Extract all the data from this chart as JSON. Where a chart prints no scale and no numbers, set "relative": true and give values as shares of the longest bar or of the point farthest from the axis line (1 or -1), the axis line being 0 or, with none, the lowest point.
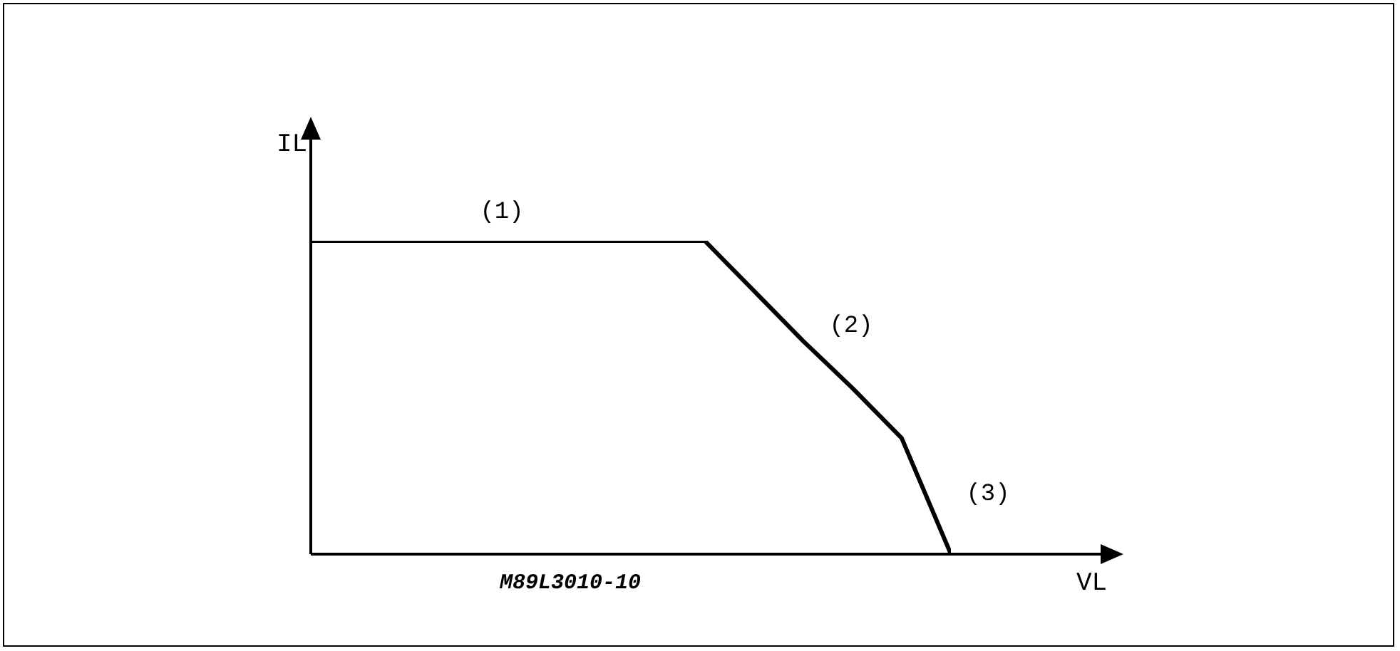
{
  "chart_data": {
    "type": "line",
    "relative": true,
    "xlabel": "VL",
    "ylabel": "IL",
    "categories": [
      null,
      null,
      null,
      null,
      null,
      null,
      null,
      null,
      null,
      null,
      null,
      null,
      null,
      null
    ],
    "series": [
      {
        "color": "#000000",
        "values": [
          1,
          1,
          1,
          1,
          1,
          1,
          1,
          1,
          1,
          0.84,
          0.68,
          0.53,
          0.37,
          0
        ]
      }
    ],
    "marker": "none",
    "line_style": "solid",
    "grid": false,
    "legend": false,
    "annotations": [
      "(1)",
      "(2)",
      "(3)",
      "M89L3010-10"
    ]
  }
}
